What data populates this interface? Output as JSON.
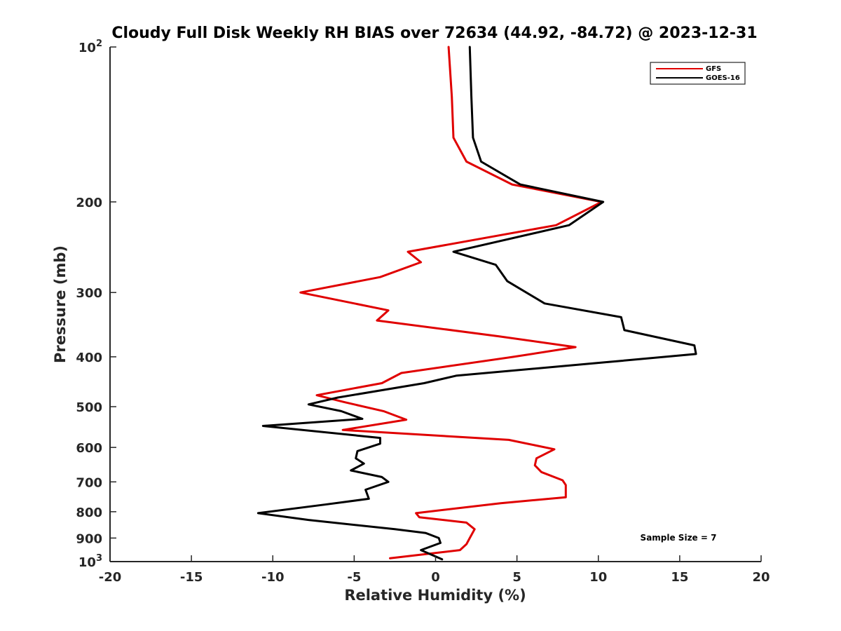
{
  "chart_data": {
    "type": "line",
    "title": "Cloudy Full Disk Weekly RH BIAS over 72634 (44.92, -84.72) @ 2023-12-31",
    "xlabel": "Relative Humidity (%)",
    "ylabel": "Pressure (mb)",
    "xlim": [
      -20,
      20
    ],
    "ylim": [
      100,
      1000
    ],
    "y_scale": "log",
    "y_reversed": true,
    "grid": false,
    "legend_position": "top-right",
    "x_ticks": [
      -20,
      -15,
      -10,
      -5,
      0,
      5,
      10,
      15,
      20
    ],
    "x_tick_labels": [
      "-20",
      "-15",
      "-10",
      "-5",
      "0",
      "5",
      "10",
      "15",
      "20"
    ],
    "y_ticks": [
      {
        "value": 100,
        "base": "10",
        "exp": "2"
      },
      {
        "value": 200,
        "label": "200"
      },
      {
        "value": 300,
        "label": "300"
      },
      {
        "value": 400,
        "label": "400"
      },
      {
        "value": 500,
        "label": "500"
      },
      {
        "value": 600,
        "label": "600"
      },
      {
        "value": 700,
        "label": "700"
      },
      {
        "value": 800,
        "label": "800"
      },
      {
        "value": 900,
        "label": "900"
      },
      {
        "value": 1000,
        "base": "10",
        "exp": "3"
      }
    ],
    "series": [
      {
        "name": "GFS",
        "color": "#e00000",
        "points": [
          [
            0.8,
            100
          ],
          [
            1.0,
            125
          ],
          [
            1.1,
            150
          ],
          [
            1.9,
            167
          ],
          [
            4.7,
            185
          ],
          [
            10.2,
            200
          ],
          [
            7.4,
            222
          ],
          [
            -1.7,
            250
          ],
          [
            -0.9,
            262
          ],
          [
            -3.4,
            280
          ],
          [
            -8.3,
            300
          ],
          [
            -2.9,
            325
          ],
          [
            -3.6,
            340
          ],
          [
            3.9,
            365
          ],
          [
            8.6,
            383
          ],
          [
            4.8,
            400
          ],
          [
            -2.1,
            430
          ],
          [
            -3.3,
            450
          ],
          [
            -7.3,
            475
          ],
          [
            -5.6,
            490
          ],
          [
            -3.2,
            510
          ],
          [
            -1.8,
            530
          ],
          [
            -5.7,
            555
          ],
          [
            4.5,
            580
          ],
          [
            7.3,
            605
          ],
          [
            6.2,
            630
          ],
          [
            6.1,
            650
          ],
          [
            6.5,
            670
          ],
          [
            7.8,
            695
          ],
          [
            8.0,
            710
          ],
          [
            8.0,
            750
          ],
          [
            4.0,
            770
          ],
          [
            -1.2,
            805
          ],
          [
            -1.0,
            820
          ],
          [
            1.9,
            840
          ],
          [
            2.4,
            865
          ],
          [
            2.1,
            900
          ],
          [
            1.9,
            925
          ],
          [
            1.5,
            950
          ],
          [
            -2.8,
            985
          ]
        ]
      },
      {
        "name": "GOES-16",
        "color": "#000000",
        "points": [
          [
            2.1,
            100
          ],
          [
            2.2,
            125
          ],
          [
            2.3,
            150
          ],
          [
            2.8,
            167
          ],
          [
            5.2,
            185
          ],
          [
            10.3,
            200
          ],
          [
            8.2,
            222
          ],
          [
            1.1,
            250
          ],
          [
            3.7,
            265
          ],
          [
            4.4,
            285
          ],
          [
            6.7,
            315
          ],
          [
            11.4,
            335
          ],
          [
            11.6,
            355
          ],
          [
            15.9,
            380
          ],
          [
            16.0,
            395
          ],
          [
            10.4,
            410
          ],
          [
            1.3,
            435
          ],
          [
            -0.7,
            450
          ],
          [
            -6.0,
            480
          ],
          [
            -7.8,
            495
          ],
          [
            -5.8,
            510
          ],
          [
            -4.5,
            528
          ],
          [
            -10.6,
            545
          ],
          [
            -3.4,
            575
          ],
          [
            -3.4,
            590
          ],
          [
            -4.8,
            610
          ],
          [
            -4.9,
            630
          ],
          [
            -4.4,
            645
          ],
          [
            -5.2,
            665
          ],
          [
            -3.3,
            685
          ],
          [
            -2.9,
            700
          ],
          [
            -4.3,
            725
          ],
          [
            -4.1,
            755
          ],
          [
            -6.8,
            775
          ],
          [
            -10.9,
            805
          ],
          [
            -7.8,
            830
          ],
          [
            -2.5,
            865
          ],
          [
            -0.6,
            880
          ],
          [
            0.2,
            900
          ],
          [
            0.3,
            920
          ],
          [
            -0.9,
            950
          ],
          [
            0.4,
            990
          ]
        ]
      }
    ],
    "annotations": [
      {
        "text": "Sample Size = 7"
      }
    ]
  }
}
